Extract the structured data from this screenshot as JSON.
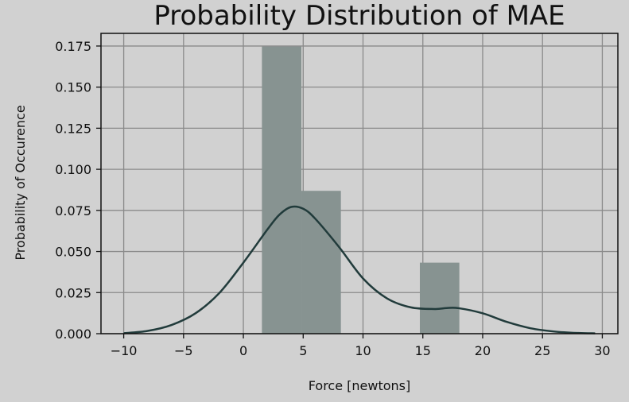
{
  "chart_data": {
    "type": "bar",
    "title": "Probability Distribution of MAE",
    "xlabel": "Force [newtons]",
    "ylabel": "Probability of Occurence",
    "xlim": [
      -11.9,
      31.3
    ],
    "ylim": [
      0,
      0.1827
    ],
    "xticks": [
      -10,
      -5,
      0,
      5,
      10,
      15,
      20,
      25,
      30
    ],
    "xtick_labels": [
      "−10",
      "−5",
      "0",
      "5",
      "10",
      "15",
      "20",
      "25",
      "30"
    ],
    "yticks": [
      0.0,
      0.025,
      0.05,
      0.075,
      0.1,
      0.125,
      0.15,
      0.175
    ],
    "ytick_labels": [
      "0.000",
      "0.025",
      "0.050",
      "0.075",
      "0.100",
      "0.125",
      "0.150",
      "0.175"
    ],
    "grid": true,
    "series": [
      {
        "kind": "histogram",
        "bins": [
          {
            "x0": 1.55,
            "x1": 4.85,
            "value": 0.1747
          },
          {
            "x0": 4.85,
            "x1": 8.15,
            "value": 0.0869
          },
          {
            "x0": 8.15,
            "x1": 11.45,
            "value": 0.0
          },
          {
            "x0": 11.45,
            "x1": 14.75,
            "value": 0.0
          },
          {
            "x0": 14.75,
            "x1": 18.05,
            "value": 0.0432
          }
        ]
      },
      {
        "kind": "kde",
        "x": [
          -10.0,
          -8.0,
          -6.0,
          -4.0,
          -2.0,
          0.0,
          2.0,
          3.0,
          4.0,
          5.0,
          6.0,
          8.0,
          10.0,
          12.0,
          14.0,
          16.0,
          17.0,
          18.0,
          20.0,
          22.0,
          24.0,
          26.0,
          28.0,
          29.4
        ],
        "y": [
          0.0003,
          0.0017,
          0.0053,
          0.0124,
          0.0248,
          0.0432,
          0.0633,
          0.0723,
          0.0771,
          0.076,
          0.07,
          0.0527,
          0.0336,
          0.0215,
          0.016,
          0.015,
          0.0156,
          0.0155,
          0.0124,
          0.0072,
          0.0033,
          0.0013,
          0.0004,
          0.0002
        ]
      }
    ]
  },
  "colors": {
    "background": "#d1d1d1",
    "grid": "#8a8a8a",
    "bars": "#879391",
    "kde_line": "#213b3b",
    "axes": "#111111"
  }
}
